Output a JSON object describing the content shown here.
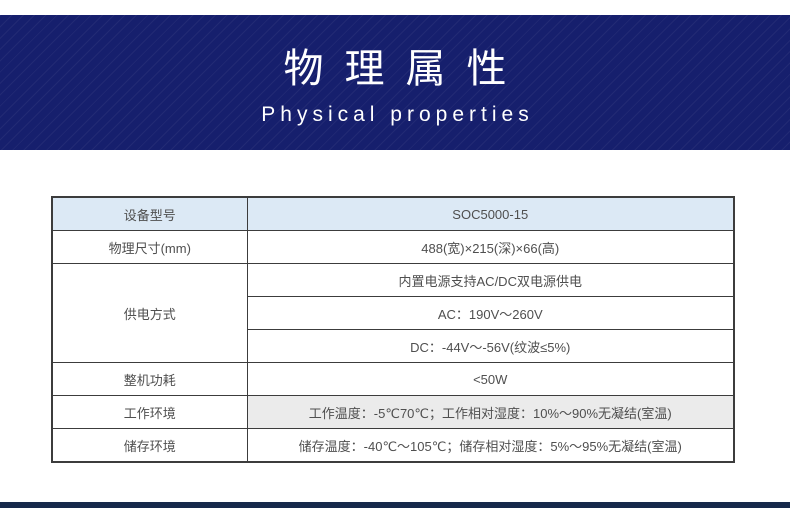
{
  "header": {
    "title": "物理属性",
    "subtitle": "Physical properties"
  },
  "table": {
    "device_model": {
      "label": "设备型号",
      "value": "SOC5000-15"
    },
    "dimensions": {
      "label": "物理尺寸(mm)",
      "value": "488(宽)×215(深)×66(高)"
    },
    "power_supply": {
      "label": "供电方式",
      "values": [
        "内置电源支持AC/DC双电源供电",
        "AC：190V～260V",
        "DC：-44V～-56V(纹波≤5%)"
      ]
    },
    "power_consumption": {
      "label": "整机功耗",
      "value": "<50W"
    },
    "operating_environment": {
      "label": "工作环境",
      "value": "工作温度：-5℃70℃；工作相对湿度：10%～90%无凝结(室温)"
    },
    "storage_environment": {
      "label": "储存环境",
      "value": "储存温度：-40℃～105℃；储存相对湿度：5%～95%无凝结(室温)"
    }
  },
  "colors": {
    "header-bg": "#161f6d",
    "footer-bg": "#16294b",
    "highlight-row-bg": "#dce9f5",
    "gray-cell-bg": "#ebebeb",
    "table-border": "#3c3c3c",
    "table-text": "#4f4f4f",
    "hero-text": "#ffffff"
  }
}
